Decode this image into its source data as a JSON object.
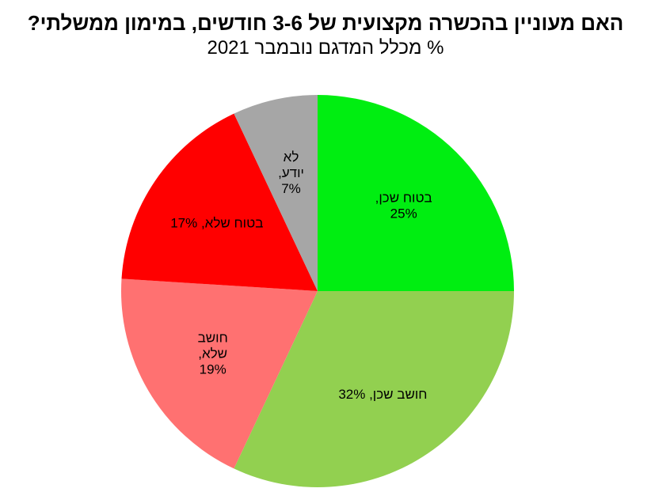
{
  "chart_data": {
    "type": "pie",
    "title": "האם מעוניין בהכשרה מקצועית של 3-6 חודשים, במימון ממשלתי?",
    "subtitle": "% מכלל המדגם נובמבר 2021",
    "slices": [
      {
        "category": "בטוח שכן",
        "value": 25,
        "color": "#00ee11",
        "label_lines": [
          "בטוח שכן,",
          "25%"
        ]
      },
      {
        "category": "חושב שכן",
        "value": 32,
        "color": "#92d050",
        "label_lines": [
          "חושב שכן, 32%"
        ]
      },
      {
        "category": "חושב שלא",
        "value": 19,
        "color": "#ff7171",
        "label_lines": [
          "חושב",
          "שלא,",
          "19%"
        ]
      },
      {
        "category": "בטוח שלא",
        "value": 17,
        "color": "#ff0000",
        "label_lines": [
          "בטוח שלא, 17%"
        ]
      },
      {
        "category": "לא יודע",
        "value": 7,
        "color": "#a6a6a6",
        "label_lines": [
          "לא",
          "יודע,",
          "7%"
        ]
      }
    ],
    "start": "12 o'clock",
    "direction": "clockwise",
    "legend": "none",
    "grid": false
  }
}
